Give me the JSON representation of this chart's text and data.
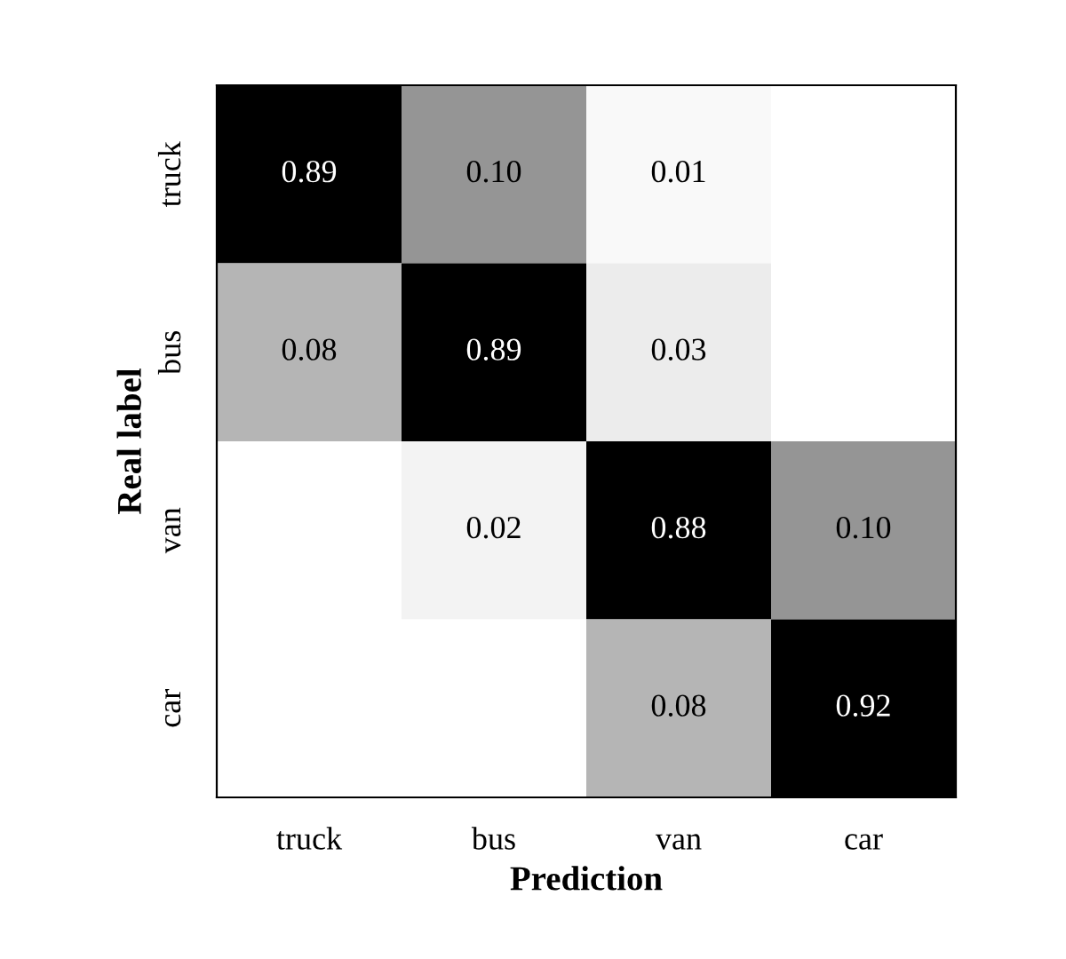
{
  "chart_data": {
    "type": "heatmap",
    "xlabel": "Prediction",
    "ylabel": "Real label",
    "categories": [
      "truck",
      "bus",
      "van",
      "car"
    ],
    "y_categories": [
      "truck",
      "bus",
      "van",
      "car"
    ],
    "cells": [
      [
        0.89,
        0.1,
        0.01,
        null
      ],
      [
        0.08,
        0.89,
        0.03,
        null
      ],
      [
        null,
        0.02,
        0.88,
        0.1
      ],
      [
        null,
        null,
        0.08,
        0.92
      ]
    ],
    "cell_labels": [
      [
        "0.89",
        "0.10",
        "0.01",
        null
      ],
      [
        "0.08",
        "0.89",
        "0.03",
        null
      ],
      [
        null,
        "0.02",
        "0.88",
        "0.10"
      ],
      [
        null,
        null,
        "0.08",
        "0.92"
      ]
    ],
    "data_labels": true
  }
}
